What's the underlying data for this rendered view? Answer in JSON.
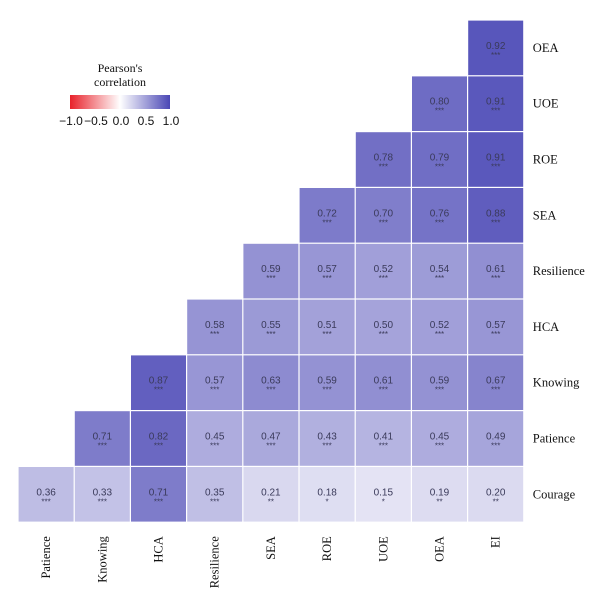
{
  "chart_data": {
    "type": "heatmap",
    "legend": {
      "title_line1": "Pearson's",
      "title_line2": "correlation",
      "ticks": [
        "−1.0",
        "−0.5",
        "0.0",
        "0.5",
        "1.0"
      ],
      "colors": [
        "#e8212a",
        "#ffffff",
        "#4a47b5"
      ],
      "range": [
        -1.0,
        1.0
      ]
    },
    "rows": [
      "OEA",
      "UOE",
      "ROE",
      "SEA",
      "Resilience",
      "HCA",
      "Knowing",
      "Patience",
      "Courage"
    ],
    "columns": [
      "Patience",
      "Knowing",
      "HCA",
      "Resilience",
      "SEA",
      "ROE",
      "UOE",
      "OEA",
      "EI"
    ],
    "cells": [
      [
        null,
        null,
        null,
        null,
        null,
        null,
        null,
        null,
        [
          0.92,
          "***"
        ]
      ],
      [
        null,
        null,
        null,
        null,
        null,
        null,
        null,
        [
          0.8,
          "***"
        ],
        [
          0.91,
          "***"
        ]
      ],
      [
        null,
        null,
        null,
        null,
        null,
        null,
        [
          0.78,
          "***"
        ],
        [
          0.79,
          "***"
        ],
        [
          0.91,
          "***"
        ]
      ],
      [
        null,
        null,
        null,
        null,
        null,
        [
          0.72,
          "***"
        ],
        [
          0.7,
          "***"
        ],
        [
          0.76,
          "***"
        ],
        [
          0.88,
          "***"
        ]
      ],
      [
        null,
        null,
        null,
        null,
        [
          0.59,
          "***"
        ],
        [
          0.57,
          "***"
        ],
        [
          0.52,
          "***"
        ],
        [
          0.54,
          "***"
        ],
        [
          0.61,
          "***"
        ]
      ],
      [
        null,
        null,
        null,
        [
          0.58,
          "***"
        ],
        [
          0.55,
          "***"
        ],
        [
          0.51,
          "***"
        ],
        [
          0.5,
          "***"
        ],
        [
          0.52,
          "***"
        ],
        [
          0.57,
          "***"
        ]
      ],
      [
        null,
        null,
        [
          0.87,
          "***"
        ],
        [
          0.57,
          "***"
        ],
        [
          0.63,
          "***"
        ],
        [
          0.59,
          "***"
        ],
        [
          0.61,
          "***"
        ],
        [
          0.59,
          "***"
        ],
        [
          0.67,
          "***"
        ]
      ],
      [
        null,
        [
          0.71,
          "***"
        ],
        [
          0.82,
          "***"
        ],
        [
          0.45,
          "***"
        ],
        [
          0.47,
          "***"
        ],
        [
          0.43,
          "***"
        ],
        [
          0.41,
          "***"
        ],
        [
          0.45,
          "***"
        ],
        [
          0.49,
          "***"
        ]
      ],
      [
        [
          0.36,
          "***"
        ],
        [
          0.33,
          "***"
        ],
        [
          0.71,
          "***"
        ],
        [
          0.35,
          "***"
        ],
        [
          0.21,
          "**"
        ],
        [
          0.18,
          "*"
        ],
        [
          0.15,
          "*"
        ],
        [
          0.19,
          "**"
        ],
        [
          0.2,
          "**"
        ]
      ]
    ]
  }
}
